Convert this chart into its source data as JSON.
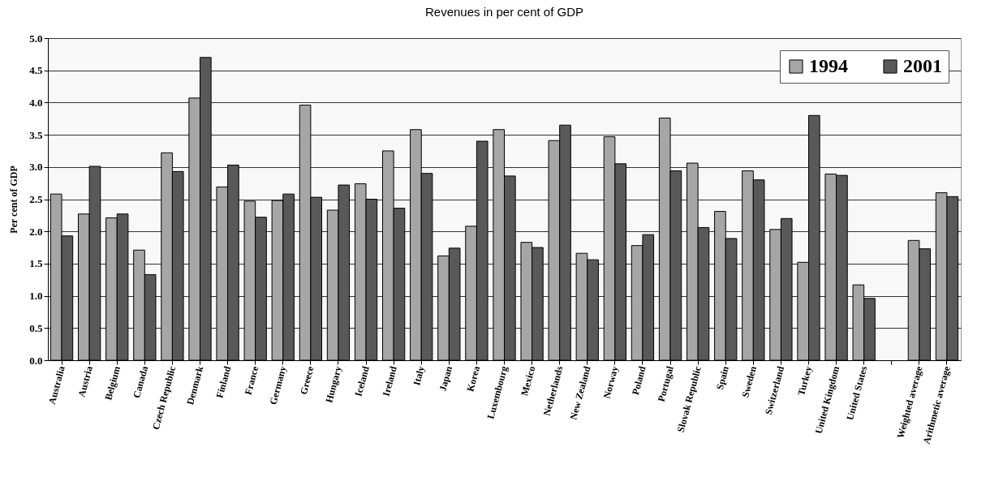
{
  "chart_data": {
    "type": "bar",
    "title": "Revenues in per cent of GDP",
    "ylabel": "Per cent of GDP",
    "categories": [
      "Australia",
      "Austria",
      "Belgium",
      "Canada",
      "Czech Republic",
      "Denmark",
      "Finland",
      "France",
      "Germany",
      "Greece",
      "Hungary",
      "Iceland",
      "Ireland",
      "Italy",
      "Japan",
      "Korea",
      "Luxembourg",
      "Mexico",
      "Netherlands",
      "New Zealand",
      "Norway",
      "Poland",
      "Portugal",
      "Slovak Republic",
      "Spain",
      "Sweden",
      "Switzerland",
      "Turkey",
      "United Kingdom",
      "United States",
      null,
      "Weighted average",
      "Arithmetic average"
    ],
    "series": [
      {
        "name": "1994",
        "color": "#a6a6a6",
        "values": [
          2.58,
          2.27,
          2.21,
          1.71,
          3.22,
          4.07,
          2.69,
          2.47,
          2.48,
          3.96,
          2.33,
          2.74,
          3.25,
          3.58,
          1.62,
          2.08,
          3.58,
          1.83,
          3.41,
          1.66,
          3.47,
          1.78,
          3.76,
          3.06,
          2.31,
          2.94,
          2.03,
          1.52,
          2.89,
          1.17,
          null,
          1.86,
          2.6
        ]
      },
      {
        "name": "2001",
        "color": "#595959",
        "values": [
          1.93,
          3.01,
          2.27,
          1.33,
          2.93,
          4.7,
          3.03,
          2.22,
          2.58,
          2.53,
          2.72,
          2.5,
          2.36,
          2.9,
          1.74,
          3.4,
          2.86,
          1.75,
          3.65,
          1.56,
          3.05,
          1.95,
          2.94,
          2.06,
          1.89,
          2.8,
          2.2,
          3.8,
          2.87,
          0.96,
          null,
          1.73,
          2.54
        ]
      }
    ],
    "ylim": [
      0,
      5
    ],
    "yticks": [
      {
        "value": 0,
        "label": "0.0"
      },
      {
        "value": 0.5,
        "label": "0.5"
      },
      {
        "value": 1,
        "label": "1.0"
      },
      {
        "value": 1.5,
        "label": "1.5"
      },
      {
        "value": 2,
        "label": "2.0"
      },
      {
        "value": 2.5,
        "label": "2.5"
      },
      {
        "value": 3,
        "label": "3.0"
      },
      {
        "value": 3.5,
        "label": "3.5"
      },
      {
        "value": 4,
        "label": "4.0"
      },
      {
        "value": 4.5,
        "label": "4.5"
      },
      {
        "value": 5,
        "label": "5.0"
      }
    ],
    "grid": "y",
    "legend": "top right"
  }
}
